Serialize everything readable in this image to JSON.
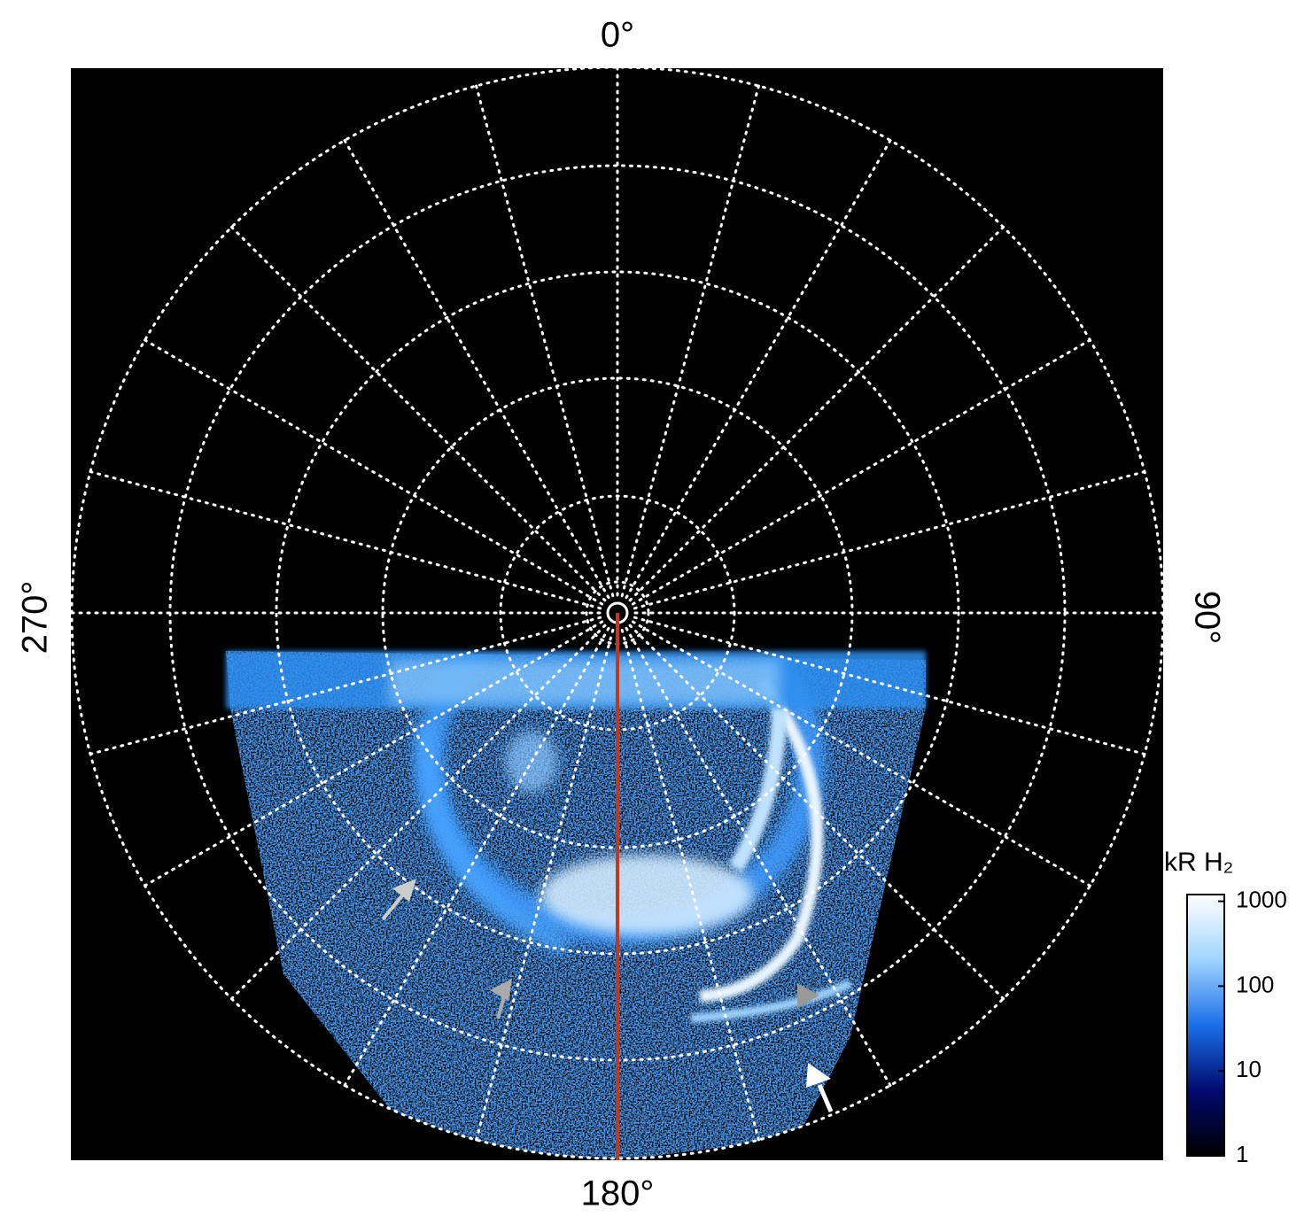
{
  "chart_data": {
    "type": "polar-image",
    "angle_labels": [
      {
        "value": 0,
        "label": "0°"
      },
      {
        "value": 90,
        "label": "90°"
      },
      {
        "value": 180,
        "label": "180°"
      },
      {
        "value": 270,
        "label": "270°"
      }
    ],
    "colorbar": {
      "label": "kR H₂",
      "log_scale": true,
      "clim": [
        1,
        1200
      ],
      "ticks": [
        1,
        10,
        100,
        1000
      ],
      "colormap": [
        "#000000",
        "#000a6e",
        "#1a6fe8",
        "#9fd4ff",
        "#ffffff"
      ]
    },
    "grid": true
  }
}
